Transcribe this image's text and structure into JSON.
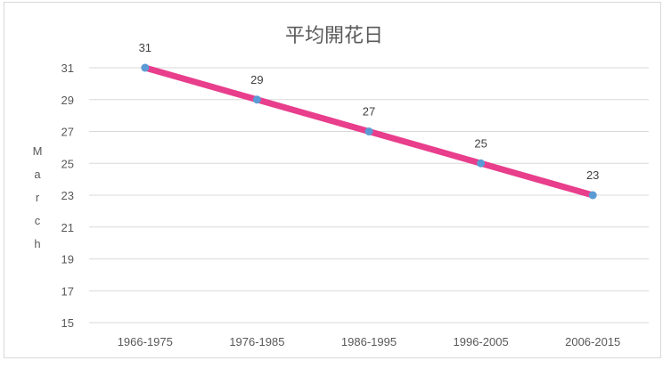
{
  "chart_data": {
    "type": "line",
    "title": "平均開花日",
    "ylabel": "March",
    "xlabel": "",
    "categories": [
      "1966-1975",
      "1976-1985",
      "1986-1995",
      "1996-2005",
      "2006-2015"
    ],
    "series": [
      {
        "values": [
          31,
          29,
          27,
          25,
          23
        ]
      }
    ],
    "yticks": [
      15,
      17,
      19,
      21,
      23,
      25,
      27,
      29,
      31
    ],
    "ylim": [
      15,
      31
    ],
    "grid": true,
    "legend": "none",
    "data_labels": true,
    "colors": {
      "line": "#e83e8c",
      "marker": "#5b9bd5",
      "grid": "#d9d9d9",
      "text": "#595959"
    }
  }
}
